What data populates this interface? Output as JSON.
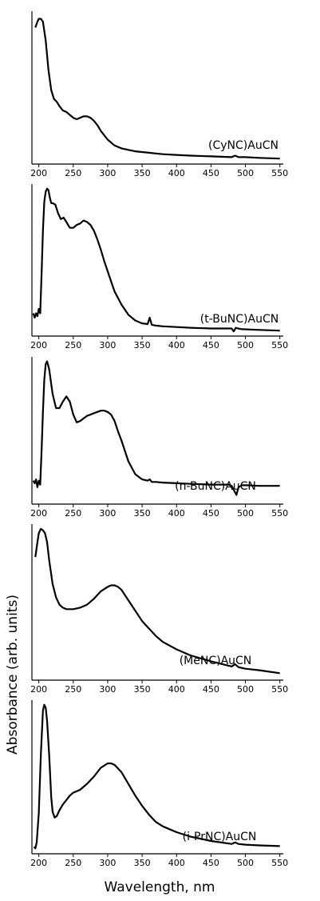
{
  "figure": {
    "ylabel": "Absorbance (arb. units)",
    "xlabel": "Wavelength, nm"
  },
  "chart_data": [
    {
      "type": "line",
      "series": [
        {
          "name": "(CyNC)AuCN",
          "x": [
            195,
            198,
            200,
            203,
            206,
            210,
            214,
            218,
            222,
            226,
            230,
            235,
            240,
            245,
            250,
            255,
            260,
            265,
            270,
            275,
            280,
            285,
            290,
            295,
            300,
            305,
            310,
            320,
            330,
            340,
            350,
            360,
            370,
            380,
            400,
            420,
            450,
            480,
            485,
            490,
            500,
            520,
            550
          ],
          "y": [
            0.91,
            0.95,
            0.97,
            0.97,
            0.95,
            0.82,
            0.62,
            0.48,
            0.42,
            0.4,
            0.37,
            0.34,
            0.33,
            0.31,
            0.29,
            0.28,
            0.29,
            0.3,
            0.3,
            0.29,
            0.27,
            0.24,
            0.2,
            0.17,
            0.14,
            0.12,
            0.1,
            0.08,
            0.07,
            0.06,
            0.055,
            0.05,
            0.045,
            0.04,
            0.035,
            0.03,
            0.025,
            0.02,
            0.03,
            0.02,
            0.02,
            0.015,
            0.01
          ]
        }
      ],
      "xticks": [
        200,
        250,
        300,
        350,
        400,
        450,
        500,
        550
      ],
      "xlim": [
        190,
        555
      ],
      "ylim": [
        0,
        1
      ]
    },
    {
      "type": "line",
      "series": [
        {
          "name": "(t-BuNC)AuCN",
          "x": [
            192,
            194,
            196,
            198,
            200,
            202,
            204,
            206,
            208,
            210,
            212,
            214,
            216,
            218,
            220,
            224,
            228,
            232,
            236,
            240,
            245,
            250,
            255,
            260,
            265,
            270,
            275,
            280,
            285,
            290,
            295,
            300,
            305,
            310,
            320,
            330,
            340,
            350,
            358,
            361,
            364,
            370,
            380,
            400,
            420,
            450,
            480,
            483,
            486,
            489,
            495,
            520,
            550
          ],
          "y": [
            0.13,
            0.1,
            0.13,
            0.11,
            0.16,
            0.13,
            0.4,
            0.7,
            0.9,
            0.97,
            0.99,
            0.98,
            0.93,
            0.89,
            0.89,
            0.88,
            0.82,
            0.78,
            0.79,
            0.76,
            0.72,
            0.72,
            0.74,
            0.75,
            0.77,
            0.76,
            0.74,
            0.7,
            0.64,
            0.57,
            0.49,
            0.42,
            0.35,
            0.28,
            0.19,
            0.12,
            0.08,
            0.06,
            0.055,
            0.1,
            0.05,
            0.045,
            0.04,
            0.035,
            0.03,
            0.025,
            0.025,
            0.005,
            0.03,
            0.025,
            0.02,
            0.015,
            0.01
          ]
        }
      ],
      "xticks": [
        200,
        250,
        300,
        350,
        400,
        450,
        500,
        550
      ],
      "xlim": [
        190,
        555
      ],
      "ylim": [
        0,
        1
      ]
    },
    {
      "type": "line",
      "series": [
        {
          "name": "(n-BuNC)AuCN",
          "x": [
            192,
            194,
            196,
            198,
            200,
            202,
            204,
            206,
            208,
            210,
            212,
            215,
            220,
            225,
            230,
            235,
            240,
            245,
            250,
            255,
            260,
            265,
            270,
            275,
            280,
            285,
            290,
            295,
            300,
            305,
            310,
            315,
            320,
            330,
            340,
            350,
            358,
            361,
            364,
            370,
            380,
            400,
            420,
            450,
            475,
            480,
            484,
            487,
            490,
            495,
            500,
            520,
            550
          ],
          "y": [
            0.07,
            0.05,
            0.08,
            0.02,
            0.07,
            0.04,
            0.3,
            0.6,
            0.85,
            0.97,
            0.99,
            0.93,
            0.74,
            0.63,
            0.63,
            0.68,
            0.72,
            0.68,
            0.58,
            0.52,
            0.53,
            0.55,
            0.57,
            0.58,
            0.59,
            0.6,
            0.61,
            0.61,
            0.6,
            0.58,
            0.53,
            0.45,
            0.38,
            0.22,
            0.12,
            0.08,
            0.07,
            0.08,
            0.06,
            0.06,
            0.055,
            0.05,
            0.045,
            0.04,
            0.04,
            0.03,
            -0.01,
            -0.04,
            0.02,
            0.035,
            0.035,
            0.03,
            0.03
          ]
        }
      ],
      "xticks": [
        200,
        250,
        300,
        350,
        400,
        450,
        500,
        550
      ],
      "xlim": [
        190,
        555
      ],
      "ylim": [
        -0.08,
        1
      ]
    },
    {
      "type": "line",
      "series": [
        {
          "name": "(MeNC)AuCN",
          "x": [
            195,
            198,
            200,
            203,
            206,
            209,
            212,
            215,
            220,
            225,
            230,
            235,
            240,
            250,
            260,
            270,
            280,
            290,
            300,
            305,
            310,
            315,
            320,
            330,
            340,
            350,
            360,
            370,
            380,
            400,
            420,
            450,
            480,
            485,
            490,
            500,
            520,
            550
          ],
          "y": [
            0.8,
            0.9,
            0.96,
            0.99,
            0.98,
            0.96,
            0.9,
            0.78,
            0.62,
            0.53,
            0.48,
            0.46,
            0.45,
            0.45,
            0.46,
            0.48,
            0.52,
            0.57,
            0.6,
            0.61,
            0.61,
            0.6,
            0.58,
            0.51,
            0.44,
            0.37,
            0.32,
            0.27,
            0.23,
            0.18,
            0.14,
            0.1,
            0.065,
            0.08,
            0.06,
            0.05,
            0.04,
            0.02
          ]
        }
      ],
      "xticks": [
        200,
        250,
        300,
        350,
        400,
        450,
        500,
        550
      ],
      "xlim": [
        190,
        555
      ],
      "ylim": [
        0,
        1
      ]
    },
    {
      "type": "line",
      "series": [
        {
          "name": "(i-PrNC)AuCN",
          "x": [
            193,
            195,
            197,
            200,
            203,
            206,
            208,
            210,
            212,
            215,
            218,
            220,
            223,
            226,
            230,
            235,
            240,
            245,
            250,
            255,
            260,
            270,
            280,
            290,
            300,
            305,
            310,
            320,
            330,
            340,
            350,
            360,
            370,
            380,
            400,
            420,
            450,
            480,
            485,
            490,
            500,
            520,
            550
          ],
          "y": [
            0.02,
            0.01,
            0.05,
            0.25,
            0.65,
            0.95,
            0.99,
            0.97,
            0.88,
            0.65,
            0.36,
            0.26,
            0.22,
            0.23,
            0.27,
            0.31,
            0.34,
            0.37,
            0.39,
            0.4,
            0.41,
            0.45,
            0.5,
            0.56,
            0.59,
            0.59,
            0.58,
            0.53,
            0.45,
            0.37,
            0.3,
            0.24,
            0.19,
            0.16,
            0.12,
            0.09,
            0.06,
            0.04,
            0.05,
            0.04,
            0.035,
            0.03,
            0.025
          ]
        }
      ],
      "xticks": [
        200,
        250,
        300,
        350,
        400,
        450,
        500,
        550
      ],
      "xlim": [
        190,
        555
      ],
      "ylim": [
        0,
        1
      ]
    }
  ]
}
